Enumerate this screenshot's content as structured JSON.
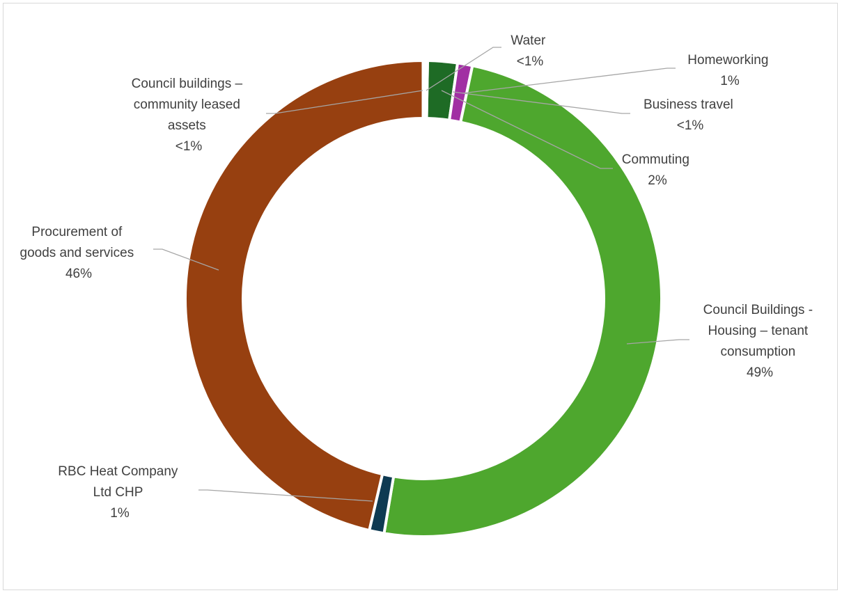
{
  "chart_data": {
    "type": "pie",
    "style": "doughnut",
    "title": "",
    "legend": "none",
    "slices": [
      {
        "label": "Commuting",
        "pct_label": "2%",
        "value": 2,
        "color": "#1e6b25"
      },
      {
        "label": "Homeworking",
        "pct_label": "1%",
        "value": 1,
        "color": "#a12fa3"
      },
      {
        "label": "Council Buildings - Housing – tenant consumption",
        "pct_label": "49%",
        "value": 49,
        "color": "#4ea72e"
      },
      {
        "label": "RBC Heat Company Ltd CHP",
        "pct_label": "1%",
        "value": 1,
        "color": "#0e3a52"
      },
      {
        "label": "Procurement of goods and services",
        "pct_label": "46%",
        "value": 46,
        "color": "#974010"
      },
      {
        "label": "Council buildings – community leased assets",
        "pct_label": "<1%",
        "value": 0.1,
        "color": "#c05a1e"
      },
      {
        "label": "Water",
        "pct_label": "<1%",
        "value": 0.1,
        "color": "#1e6b25"
      },
      {
        "label": "Business travel",
        "pct_label": "<1%",
        "value": 0.1,
        "color": "#a12fa3"
      }
    ],
    "labels": {
      "water": {
        "lines": [
          "Water",
          "<1%"
        ]
      },
      "homeworking": {
        "lines": [
          "Homeworking",
          "1%"
        ]
      },
      "business_travel": {
        "lines": [
          "Business travel",
          "<1%"
        ]
      },
      "commuting": {
        "lines": [
          "Commuting",
          "2%"
        ]
      },
      "housing": {
        "lines": [
          "Council Buildings -",
          "Housing – tenant",
          "consumption",
          "49%"
        ]
      },
      "rbc": {
        "lines": [
          "RBC Heat Company",
          "Ltd CHP",
          "1%"
        ]
      },
      "procurement": {
        "lines": [
          "Procurement of",
          "goods and services",
          "46%"
        ]
      },
      "community": {
        "lines": [
          "Council buildings –",
          "community leased",
          "assets",
          "<1%"
        ]
      }
    },
    "colors": {
      "leader": "#a6a6a6",
      "text": "#404040",
      "separator": "#ffffff"
    }
  }
}
